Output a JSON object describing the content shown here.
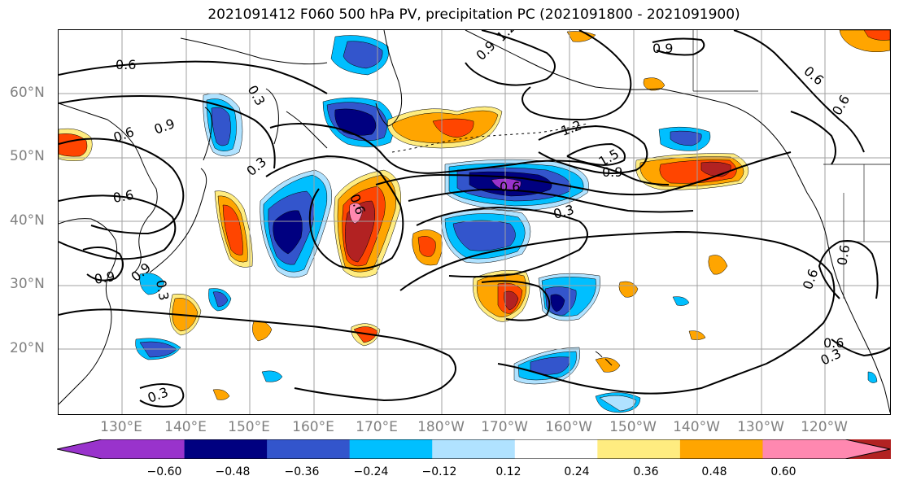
{
  "title": "2021091412 F060 500 hPa PV, precipitation PC (2021091800 - 2021091900)",
  "lat_labels": [
    "60°N",
    "50°N",
    "40°N",
    "30°N",
    "20°N"
  ],
  "lon_labels": [
    "130°E",
    "140°E",
    "150°E",
    "160°E",
    "170°E",
    "180°W",
    "170°W",
    "160°W",
    "150°W",
    "140°W",
    "130°W",
    "120°W"
  ],
  "colorbar": {
    "colors": [
      "#9933cc",
      "#000080",
      "#3355cc",
      "#00bfff",
      "#b0e2ff",
      "#ffffff",
      "#ffec80",
      "#ffa500",
      "#ff4500",
      "#b22222",
      "#ff88b0"
    ],
    "ticks": [
      "−0.60",
      "−0.48",
      "−0.36",
      "−0.24",
      "−0.12",
      "0.12",
      "0.24",
      "0.36",
      "0.48",
      "0.60"
    ]
  },
  "contour_labels": [
    "0.6",
    "0.3",
    "0.9",
    "1.2",
    "0.6",
    "0.9",
    "1.5",
    "1.2",
    "0.9",
    "0.6",
    "0.3",
    "0.9",
    "0.6",
    "0.6",
    "0.3",
    "0.6",
    "0.3",
    "0.9",
    "0.6",
    "0.6",
    "0.3",
    "0.3",
    "0.9",
    "0.6",
    "0.6"
  ]
}
